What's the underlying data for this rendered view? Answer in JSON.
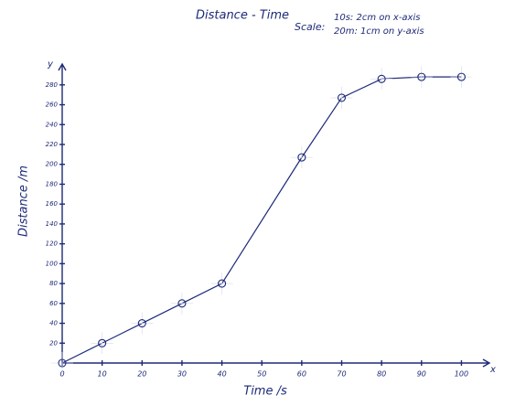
{
  "chart_data": {
    "type": "line",
    "title": "Distance - Time",
    "scale_label": "Scale:",
    "scale_lines": [
      "10s: 2cm on x-axis",
      "20m: 1cm on y-axis"
    ],
    "x_label": "Time /s",
    "y_label": "Distance /m",
    "x_axis_letter": "x",
    "y_axis_letter": "y",
    "x": [
      0,
      10,
      20,
      30,
      40,
      60,
      70,
      80,
      90,
      100
    ],
    "series": [
      {
        "name": "Distance",
        "color": "#1d2a78",
        "values": [
          0,
          20,
          40,
          60,
          80,
          207,
          267,
          286,
          288,
          288
        ]
      }
    ],
    "xlim": [
      0,
      107
    ],
    "ylim": [
      0,
      301
    ],
    "xticks": [
      0,
      10,
      20,
      30,
      40,
      50,
      60,
      70,
      80,
      90,
      100
    ],
    "yticks": [
      20,
      40,
      60,
      80,
      100,
      120,
      140,
      160,
      180,
      200,
      220,
      240,
      260,
      280
    ]
  }
}
